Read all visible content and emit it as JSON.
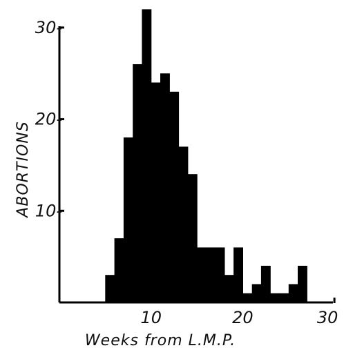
{
  "chart_data": {
    "type": "bar",
    "title": "",
    "xlabel": "Weeks from L.M.P.",
    "ylabel": "ABORTIONS",
    "xlim": [
      0,
      30
    ],
    "ylim": [
      0,
      30
    ],
    "x_ticks": [
      10,
      20,
      30
    ],
    "y_ticks": [
      10,
      20,
      30
    ],
    "x_tick_labels": [
      "10",
      "20",
      "30"
    ],
    "y_tick_labels": [
      "10-",
      "20-",
      "30-"
    ],
    "grid": false,
    "bar_color": "#000000",
    "bin_width": 1,
    "bins": [
      {
        "x": 5,
        "value": 3
      },
      {
        "x": 6,
        "value": 7
      },
      {
        "x": 7,
        "value": 18
      },
      {
        "x": 8,
        "value": 26
      },
      {
        "x": 9,
        "value": 32
      },
      {
        "x": 10,
        "value": 24
      },
      {
        "x": 11,
        "value": 25
      },
      {
        "x": 12,
        "value": 23
      },
      {
        "x": 13,
        "value": 17
      },
      {
        "x": 14,
        "value": 14
      },
      {
        "x": 15,
        "value": 6
      },
      {
        "x": 16,
        "value": 6
      },
      {
        "x": 17,
        "value": 6
      },
      {
        "x": 18,
        "value": 3
      },
      {
        "x": 19,
        "value": 6
      },
      {
        "x": 20,
        "value": 1
      },
      {
        "x": 21,
        "value": 2
      },
      {
        "x": 22,
        "value": 4
      },
      {
        "x": 23,
        "value": 1
      },
      {
        "x": 24,
        "value": 1
      },
      {
        "x": 25,
        "value": 2
      },
      {
        "x": 26,
        "value": 4
      }
    ]
  }
}
